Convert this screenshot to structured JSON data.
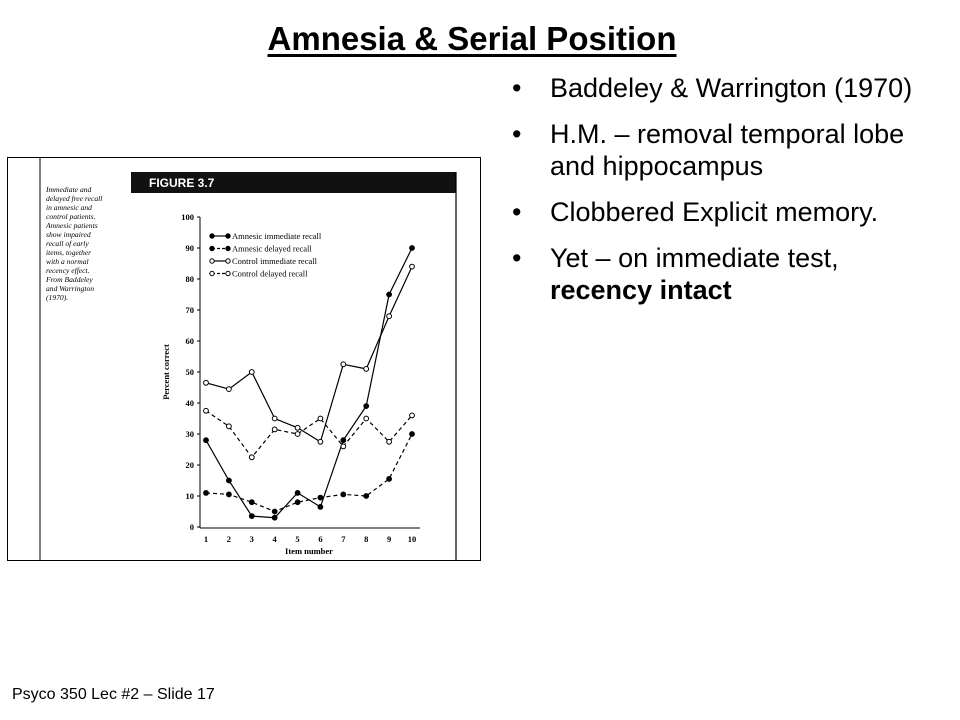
{
  "slide": {
    "title": "Amnesia & Serial Position",
    "bullets": [
      {
        "text": "Baddeley & Warrington (1970)",
        "bold": ""
      },
      {
        "text": "H.M. – removal temporal lobe and hippocampus",
        "bold": ""
      },
      {
        "text": "Clobbered Explicit memory.",
        "bold": ""
      },
      {
        "text": "Yet – on immediate test, ",
        "bold": "recency intact"
      }
    ],
    "bullet_glyph": "•",
    "footer": "Psyco 350 Lec #2 – Slide 17"
  },
  "figure": {
    "label": "FIGURE 3.7",
    "caption": [
      "Immediate and",
      "delayed free recall",
      "in amnesic and",
      "control patients.",
      "Amnesic patients",
      "show impaired",
      "recall of early",
      "items, together",
      "with a normal",
      "recency effect.",
      "From Baddeley",
      "and Warrington",
      "(1970)."
    ]
  },
  "chart_data": {
    "type": "line",
    "title": "",
    "xlabel": "Item number",
    "ylabel": "Percent correct",
    "x": [
      1,
      2,
      3,
      4,
      5,
      6,
      7,
      8,
      9,
      10
    ],
    "xlim": [
      1,
      10
    ],
    "ylim": [
      0,
      100
    ],
    "yticks": [
      0,
      10,
      20,
      30,
      40,
      50,
      60,
      70,
      80,
      90,
      100
    ],
    "grid": false,
    "legend": "top-left",
    "series": [
      {
        "name": "Amnesic immediate recall",
        "marker": "filled",
        "dash": "solid",
        "values": [
          28,
          15,
          3.5,
          3,
          11,
          6.5,
          28,
          39,
          75,
          90
        ]
      },
      {
        "name": "Amnesic delayed recall",
        "marker": "filled",
        "dash": "dashed",
        "values": [
          11,
          10.5,
          8,
          5,
          8,
          9.5,
          10.5,
          10,
          15.5,
          30
        ]
      },
      {
        "name": "Control immediate recall",
        "marker": "open",
        "dash": "solid",
        "values": [
          46.5,
          44.5,
          50,
          35,
          32,
          27.5,
          52.5,
          51,
          68,
          84
        ]
      },
      {
        "name": "Control delayed recall",
        "marker": "open",
        "dash": "dashed",
        "values": [
          37.5,
          32.5,
          22.5,
          31.5,
          30,
          35,
          26,
          35,
          27.5,
          36
        ]
      }
    ]
  },
  "colors": {
    "ink": "#000000",
    "background": "#ffffff",
    "figure_band": "#111111"
  }
}
